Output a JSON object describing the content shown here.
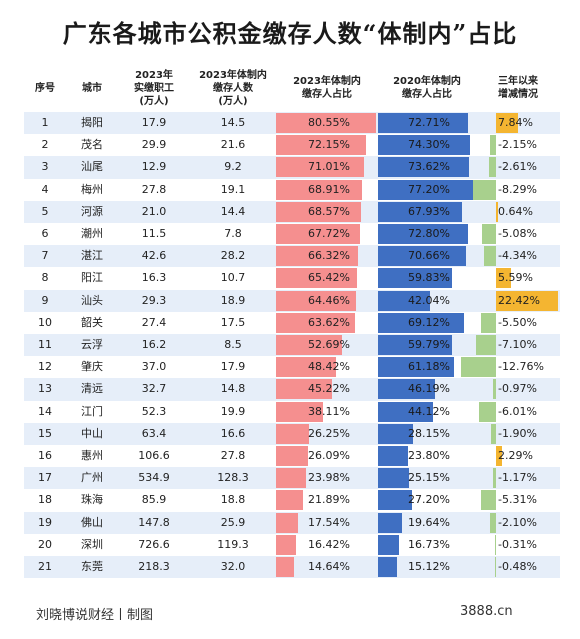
{
  "title": "广东各城市公积金缴存人数“体制内”占比",
  "headers": {
    "no": "序号",
    "city": "城市",
    "workers": "2023年\n实缴职工\n(万人)",
    "gov": "2023年体制内\n缴存人数\n(万人)",
    "share2023": "2023年体制内\n缴存人占比",
    "share2020": "2020年体制内\n缴存人占比",
    "change": "三年以来\n增减情况"
  },
  "chart_data": {
    "type": "table",
    "columns": [
      "序号",
      "城市",
      "2023年实缴职工(万人)",
      "2023年体制内缴存人数(万人)",
      "2023年体制内缴存人占比",
      "2020年体制内缴存人占比",
      "三年以来增减情况"
    ],
    "rows": [
      {
        "no": "1",
        "city": "揭阳",
        "workers": "17.9",
        "gov": "14.5",
        "s23": 80.55,
        "s23_label": "80.55%",
        "s20": 72.71,
        "s20_label": "72.71%",
        "chg": 7.84,
        "chg_label": "7.84%"
      },
      {
        "no": "2",
        "city": "茂名",
        "workers": "29.9",
        "gov": "21.6",
        "s23": 72.15,
        "s23_label": "72.15%",
        "s20": 74.3,
        "s20_label": "74.30%",
        "chg": -2.15,
        "chg_label": "-2.15%"
      },
      {
        "no": "3",
        "city": "汕尾",
        "workers": "12.9",
        "gov": "9.2",
        "s23": 71.01,
        "s23_label": "71.01%",
        "s20": 73.62,
        "s20_label": "73.62%",
        "chg": -2.61,
        "chg_label": "-2.61%"
      },
      {
        "no": "4",
        "city": "梅州",
        "workers": "27.8",
        "gov": "19.1",
        "s23": 68.91,
        "s23_label": "68.91%",
        "s20": 77.2,
        "s20_label": "77.20%",
        "chg": -8.29,
        "chg_label": "-8.29%"
      },
      {
        "no": "5",
        "city": "河源",
        "workers": "21.0",
        "gov": "14.4",
        "s23": 68.57,
        "s23_label": "68.57%",
        "s20": 67.93,
        "s20_label": "67.93%",
        "chg": 0.64,
        "chg_label": "0.64%"
      },
      {
        "no": "6",
        "city": "潮州",
        "workers": "11.5",
        "gov": "7.8",
        "s23": 67.72,
        "s23_label": "67.72%",
        "s20": 72.8,
        "s20_label": "72.80%",
        "chg": -5.08,
        "chg_label": "-5.08%"
      },
      {
        "no": "7",
        "city": "湛江",
        "workers": "42.6",
        "gov": "28.2",
        "s23": 66.32,
        "s23_label": "66.32%",
        "s20": 70.66,
        "s20_label": "70.66%",
        "chg": -4.34,
        "chg_label": "-4.34%"
      },
      {
        "no": "8",
        "city": "阳江",
        "workers": "16.3",
        "gov": "10.7",
        "s23": 65.42,
        "s23_label": "65.42%",
        "s20": 59.83,
        "s20_label": "59.83%",
        "chg": 5.59,
        "chg_label": "5.59%"
      },
      {
        "no": "9",
        "city": "汕头",
        "workers": "29.3",
        "gov": "18.9",
        "s23": 64.46,
        "s23_label": "64.46%",
        "s20": 42.04,
        "s20_label": "42.04%",
        "chg": 22.42,
        "chg_label": "22.42%"
      },
      {
        "no": "10",
        "city": "韶关",
        "workers": "27.4",
        "gov": "17.5",
        "s23": 63.62,
        "s23_label": "63.62%",
        "s20": 69.12,
        "s20_label": "69.12%",
        "chg": -5.5,
        "chg_label": "-5.50%"
      },
      {
        "no": "11",
        "city": "云浮",
        "workers": "16.2",
        "gov": "8.5",
        "s23": 52.69,
        "s23_label": "52.69%",
        "s20": 59.79,
        "s20_label": "59.79%",
        "chg": -7.1,
        "chg_label": "-7.10%"
      },
      {
        "no": "12",
        "city": "肇庆",
        "workers": "37.0",
        "gov": "17.9",
        "s23": 48.42,
        "s23_label": "48.42%",
        "s20": 61.18,
        "s20_label": "61.18%",
        "chg": -12.76,
        "chg_label": "-12.76%"
      },
      {
        "no": "13",
        "city": "清远",
        "workers": "32.7",
        "gov": "14.8",
        "s23": 45.22,
        "s23_label": "45.22%",
        "s20": 46.19,
        "s20_label": "46.19%",
        "chg": -0.97,
        "chg_label": "-0.97%"
      },
      {
        "no": "14",
        "city": "江门",
        "workers": "52.3",
        "gov": "19.9",
        "s23": 38.11,
        "s23_label": "38.11%",
        "s20": 44.12,
        "s20_label": "44.12%",
        "chg": -6.01,
        "chg_label": "-6.01%"
      },
      {
        "no": "15",
        "city": "中山",
        "workers": "63.4",
        "gov": "16.6",
        "s23": 26.25,
        "s23_label": "26.25%",
        "s20": 28.15,
        "s20_label": "28.15%",
        "chg": -1.9,
        "chg_label": "-1.90%"
      },
      {
        "no": "16",
        "city": "惠州",
        "workers": "106.6",
        "gov": "27.8",
        "s23": 26.09,
        "s23_label": "26.09%",
        "s20": 23.8,
        "s20_label": "23.80%",
        "chg": 2.29,
        "chg_label": "2.29%"
      },
      {
        "no": "17",
        "city": "广州",
        "workers": "534.9",
        "gov": "128.3",
        "s23": 23.98,
        "s23_label": "23.98%",
        "s20": 25.15,
        "s20_label": "25.15%",
        "chg": -1.17,
        "chg_label": "-1.17%"
      },
      {
        "no": "18",
        "city": "珠海",
        "workers": "85.9",
        "gov": "18.8",
        "s23": 21.89,
        "s23_label": "21.89%",
        "s20": 27.2,
        "s20_label": "27.20%",
        "chg": -5.31,
        "chg_label": "-5.31%"
      },
      {
        "no": "19",
        "city": "佛山",
        "workers": "147.8",
        "gov": "25.9",
        "s23": 17.54,
        "s23_label": "17.54%",
        "s20": 19.64,
        "s20_label": "19.64%",
        "chg": -2.1,
        "chg_label": "-2.10%"
      },
      {
        "no": "20",
        "city": "深圳",
        "workers": "726.6",
        "gov": "119.3",
        "s23": 16.42,
        "s23_label": "16.42%",
        "s20": 16.73,
        "s20_label": "16.73%",
        "chg": -0.31,
        "chg_label": "-0.31%"
      },
      {
        "no": "21",
        "city": "东莞",
        "workers": "218.3",
        "gov": "32.0",
        "s23": 14.64,
        "s23_label": "14.64%",
        "s20": 15.12,
        "s20_label": "15.12%",
        "chg": -0.48,
        "chg_label": "-0.48%"
      }
    ],
    "colors": {
      "share2023": "#f58f8f",
      "share2020": "#3f6fc2",
      "increase": "#f4b531",
      "decrease": "#a8d08d",
      "row_alt": "#e6eef9"
    }
  },
  "footer": {
    "source": "刘晓博说财经丨制图",
    "site": "3888.cn"
  }
}
